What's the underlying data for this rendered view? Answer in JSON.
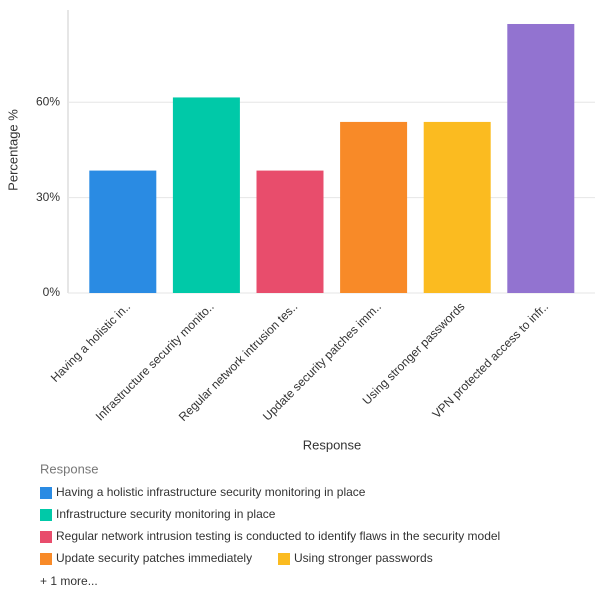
{
  "chart_data": {
    "type": "bar",
    "categories": [
      "Having a holistic in..",
      "Infrastructure security monito..",
      "Regular network intrusion tes..",
      "Update security patches imm..",
      "Using stronger passwords",
      "VPN protected access to infr.."
    ],
    "values": [
      38.5,
      61.5,
      38.5,
      53.8,
      53.8,
      84.6
    ],
    "colors": [
      "#2a8be3",
      "#00c9a8",
      "#e84d6c",
      "#f88a28",
      "#fbbb20",
      "#9273d0"
    ],
    "ylim": [
      0,
      89
    ],
    "yticks": [
      {
        "value": 0,
        "label": "0%"
      },
      {
        "value": 30,
        "label": "30%"
      },
      {
        "value": 60,
        "label": "60%"
      }
    ],
    "y_label": "Percentage %",
    "x_label": "Response",
    "grid": true,
    "legend": {
      "title": "Response",
      "items": [
        "Having a holistic infrastructure security monitoring in place",
        "Infrastructure security monitoring in place",
        "Regular network intrusion testing is conducted to identify flaws in the security model",
        "Update security patches immediately",
        "Using stronger passwords"
      ],
      "more": "+ 1 more..."
    }
  }
}
